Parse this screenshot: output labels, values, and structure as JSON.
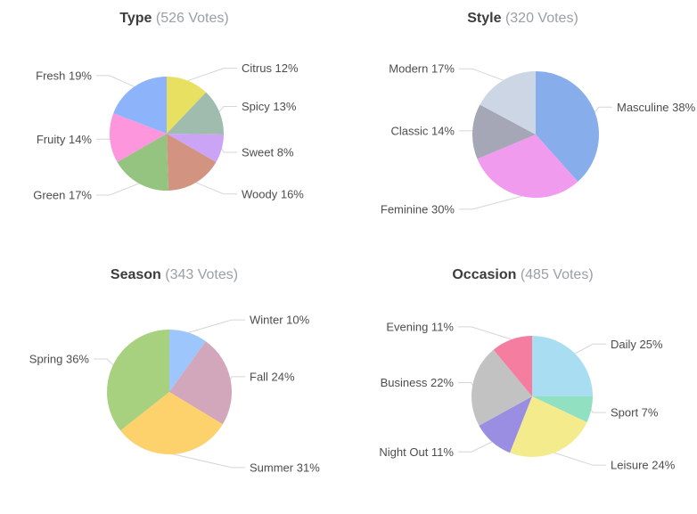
{
  "page": {
    "background_color": "#ffffff",
    "title_color": "#3c3c3c",
    "votes_color": "#9aa0a6",
    "label_color": "#4d4d4d",
    "leader_line_color": "#d6d6d6"
  },
  "chart_data": [
    {
      "type": "pie",
      "title": "Type",
      "votes_label": "(526 Votes)",
      "total_votes": 526,
      "unit": "%",
      "start_angle": "top",
      "direction": "clockwise",
      "legend": "outer-labels-with-leader-lines",
      "labels": [
        "Citrus",
        "Spicy",
        "Sweet",
        "Woody",
        "Green",
        "Fruity",
        "Fresh"
      ],
      "values": [
        12,
        13,
        8,
        16,
        17,
        14,
        19
      ],
      "colors": [
        "#e7e060",
        "#9fbcae",
        "#cba4f6",
        "#d29480",
        "#94c47f",
        "#fd96dc",
        "#8db4fb"
      ]
    },
    {
      "type": "pie",
      "title": "Style",
      "votes_label": "(320 Votes)",
      "total_votes": 320,
      "unit": "%",
      "start_angle": "top",
      "direction": "clockwise",
      "legend": "outer-labels-with-leader-lines",
      "labels": [
        "Masculine",
        "Feminine",
        "Classic",
        "Modern"
      ],
      "values": [
        38,
        30,
        14,
        17
      ],
      "colors": [
        "#87aeeb",
        "#f19bee",
        "#a5a6b6",
        "#cdd6e5"
      ]
    },
    {
      "type": "pie",
      "title": "Season",
      "votes_label": "(343 Votes)",
      "total_votes": 343,
      "unit": "%",
      "start_angle": "top",
      "direction": "clockwise",
      "legend": "outer-labels-with-leader-lines",
      "labels": [
        "Winter",
        "Fall",
        "Summer",
        "Spring"
      ],
      "values": [
        10,
        24,
        31,
        36
      ],
      "colors": [
        "#9dc7fc",
        "#d2a6bb",
        "#fdd26c",
        "#a7d17e"
      ]
    },
    {
      "type": "pie",
      "title": "Occasion",
      "votes_label": "(485 Votes)",
      "total_votes": 485,
      "unit": "%",
      "start_angle": "top",
      "direction": "clockwise",
      "legend": "outer-labels-with-leader-lines",
      "labels": [
        "Daily",
        "Sport",
        "Leisure",
        "Night Out",
        "Business",
        "Evening"
      ],
      "values": [
        25,
        7,
        24,
        11,
        22,
        11
      ],
      "colors": [
        "#a9ddf1",
        "#92e0c2",
        "#f3eb8c",
        "#9a8ee2",
        "#c3c2c2",
        "#f57ea0"
      ]
    }
  ]
}
